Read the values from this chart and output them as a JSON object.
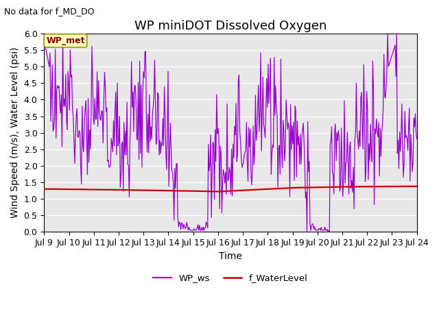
{
  "title": "WP miniDOT Dissolved Oxygen",
  "subtitle": "No data for f_MD_DO",
  "xlabel": "Time",
  "ylabel": "Wind Speed (m/s), Water Level (psi)",
  "ylim": [
    0.0,
    6.0
  ],
  "yticks": [
    0.0,
    0.5,
    1.0,
    1.5,
    2.0,
    2.5,
    3.0,
    3.5,
    4.0,
    4.5,
    5.0,
    5.5,
    6.0
  ],
  "xlim": [
    9,
    24
  ],
  "xtick_vals": [
    9,
    10,
    11,
    12,
    13,
    14,
    15,
    16,
    17,
    18,
    19,
    20,
    21,
    22,
    23,
    24
  ],
  "wp_ws_color": "#9900CC",
  "f_wl_color": "#CC0000",
  "legend_label_ws": "WP_ws",
  "legend_label_wl": "f_WaterLevel",
  "inset_label": "WP_met",
  "bg_color": "#E8E8E8",
  "fig_bg_color": "#FFFFFF",
  "title_fontsize": 13,
  "axis_label_fontsize": 10,
  "tick_fontsize": 9,
  "subtitle_fontsize": 9
}
